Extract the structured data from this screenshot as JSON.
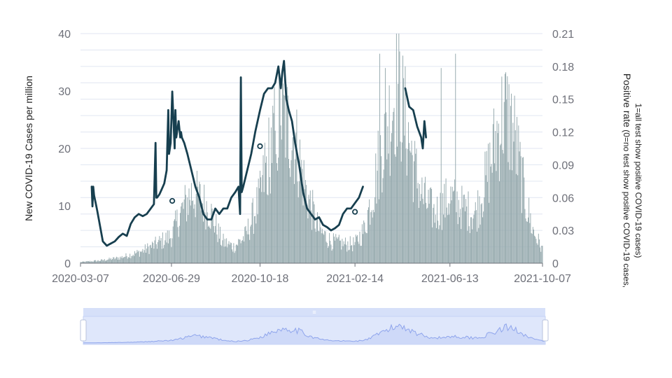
{
  "chart_data": {
    "type": "bar+line",
    "title": "",
    "xlabel": "",
    "ylabel": "New COVID-19 Cases per million",
    "y2label_line1": "Positive rate",
    "y2label_line1_note": " (0=no test show positive COVID-19 cases,",
    "y2label_line2": "1=all test show positive COVID-19 cases)",
    "x_range": [
      "2020-03-07",
      "2021-10-07"
    ],
    "x_ticks": [
      "2020-03-07",
      "2020-06-29",
      "2020-10-18",
      "2021-02-14",
      "2021-06-13",
      "2021-10-07"
    ],
    "y_ticks": [
      "0",
      "10",
      "20",
      "30",
      "40"
    ],
    "y2_ticks": [
      "0",
      "0.03",
      "0.06",
      "0.09",
      "0.12",
      "0.15",
      "0.18",
      "0.21"
    ],
    "ylim": [
      0,
      40
    ],
    "y2lim": [
      0,
      0.21
    ],
    "grid": true,
    "colors": {
      "bars": "#95a9ad",
      "line": "#173f4f",
      "grid": "#e0e6f1",
      "zoom_fill": "#dfe7fb",
      "zoom_border": "#c5d3f6",
      "zoom_line": "#8fa5ec"
    },
    "cases_envelope": {
      "dates": [
        "2020-03-07",
        "2020-04-01",
        "2020-04-25",
        "2020-05-20",
        "2020-06-10",
        "2020-06-29",
        "2020-07-10",
        "2020-07-25",
        "2020-08-15",
        "2020-08-31",
        "2020-09-15",
        "2020-09-30",
        "2020-10-18",
        "2020-11-01",
        "2020-11-15",
        "2020-11-30",
        "2020-12-15",
        "2020-12-31",
        "2021-01-15",
        "2021-02-01",
        "2021-02-14",
        "2021-02-25",
        "2021-03-10",
        "2021-03-20",
        "2021-03-30",
        "2021-04-08",
        "2021-04-18",
        "2021-04-30",
        "2021-05-10",
        "2021-05-25",
        "2021-06-13",
        "2021-06-30",
        "2021-07-15",
        "2021-07-30",
        "2021-08-10",
        "2021-08-20",
        "2021-09-01",
        "2021-09-15",
        "2021-09-25",
        "2021-10-07"
      ],
      "values": [
        0.2,
        0.5,
        1.0,
        2.0,
        3.5,
        5.0,
        9.0,
        13.0,
        10.0,
        4.0,
        3.0,
        5.0,
        12.0,
        22.0,
        27.0,
        23.0,
        13.0,
        6.0,
        4.0,
        3.5,
        3.5,
        6.0,
        14.0,
        22.0,
        27.0,
        33.0,
        26.0,
        17.0,
        12.0,
        9.0,
        12.0,
        10.0,
        9.0,
        16.0,
        23.0,
        28.0,
        24.0,
        12.0,
        6.0,
        2.5
      ]
    },
    "positive_rate": [
      {
        "dates": [
          "2020-03-21",
          "2020-03-22",
          "2020-03-23",
          "2020-03-24",
          "2020-03-26",
          "2020-03-28",
          "2020-03-30",
          "2020-04-04",
          "2020-04-09",
          "2020-04-14",
          "2020-04-19",
          "2020-04-24",
          "2020-04-29",
          "2020-05-04",
          "2020-05-09",
          "2020-05-14",
          "2020-05-19",
          "2020-05-24",
          "2020-05-29",
          "2020-06-03",
          "2020-06-07",
          "2020-06-09",
          "2020-06-10",
          "2020-06-11",
          "2020-06-14",
          "2020-06-17",
          "2020-06-20",
          "2020-06-23",
          "2020-06-25",
          "2020-06-26",
          "2020-06-28",
          "2020-06-30",
          "2020-07-03",
          "2020-07-04",
          "2020-07-05",
          "2020-07-08",
          "2020-07-10",
          "2020-07-11",
          "2020-07-12",
          "2020-07-15",
          "2020-07-19",
          "2020-07-24",
          "2020-07-29",
          "2020-08-03",
          "2020-08-08",
          "2020-08-13",
          "2020-08-18",
          "2020-08-23",
          "2020-08-28",
          "2020-09-02",
          "2020-09-07",
          "2020-09-12",
          "2020-09-17",
          "2020-09-21",
          "2020-09-23",
          "2020-09-24",
          "2020-09-25",
          "2020-09-27",
          "2020-10-02",
          "2020-10-07",
          "2020-10-12",
          "2020-10-18",
          "2020-10-23",
          "2020-10-28",
          "2020-11-02",
          "2020-11-06",
          "2020-11-10",
          "2020-11-13",
          "2020-11-15",
          "2020-11-17",
          "2020-11-20",
          "2020-11-23",
          "2020-11-27",
          "2020-12-01",
          "2020-12-06",
          "2020-12-11",
          "2020-12-16",
          "2020-12-21",
          "2020-12-26",
          "2020-12-31",
          "2021-01-05",
          "2021-01-10",
          "2021-01-15",
          "2021-01-20",
          "2021-01-25",
          "2021-01-30",
          "2021-02-04",
          "2021-02-09",
          "2021-02-14",
          "2021-02-19",
          "2021-02-24"
        ],
        "values": [
          0.07,
          0.052,
          0.07,
          0.062,
          0.055,
          0.048,
          0.04,
          0.02,
          0.016,
          0.018,
          0.02,
          0.024,
          0.027,
          0.025,
          0.036,
          0.042,
          0.045,
          0.043,
          0.045,
          0.05,
          0.054,
          0.11,
          0.06,
          0.06,
          0.063,
          0.068,
          0.073,
          0.085,
          0.14,
          0.1,
          0.11,
          0.157,
          0.105,
          0.14,
          0.115,
          0.13,
          0.115,
          0.12,
          0.115,
          0.11,
          0.1,
          0.085,
          0.07,
          0.06,
          0.045,
          0.04,
          0.04,
          0.05,
          0.045,
          0.05,
          0.05,
          0.06,
          0.065,
          0.07,
          0.045,
          0.17,
          0.065,
          0.07,
          0.085,
          0.1,
          0.12,
          0.14,
          0.155,
          0.16,
          0.16,
          0.165,
          0.18,
          0.16,
          0.175,
          0.185,
          0.15,
          0.14,
          0.13,
          0.11,
          0.09,
          0.065,
          0.05,
          0.045,
          0.04,
          0.042,
          0.035,
          0.033,
          0.03,
          0.032,
          0.035,
          0.045,
          0.05,
          0.05,
          0.055,
          0.06,
          0.07
        ]
      },
      {
        "dates": [
          "2021-04-18",
          "2021-04-23",
          "2021-04-28",
          "2021-05-03",
          "2021-05-08",
          "2021-05-10",
          "2021-05-12",
          "2021-05-14"
        ],
        "values": [
          0.16,
          0.143,
          0.14,
          0.125,
          0.115,
          0.105,
          0.13,
          0.115
        ]
      }
    ],
    "open_markers": {
      "dates": [
        "2020-06-30",
        "2020-10-18",
        "2021-02-14"
      ],
      "values": [
        0.057,
        0.107,
        0.047
      ]
    }
  }
}
